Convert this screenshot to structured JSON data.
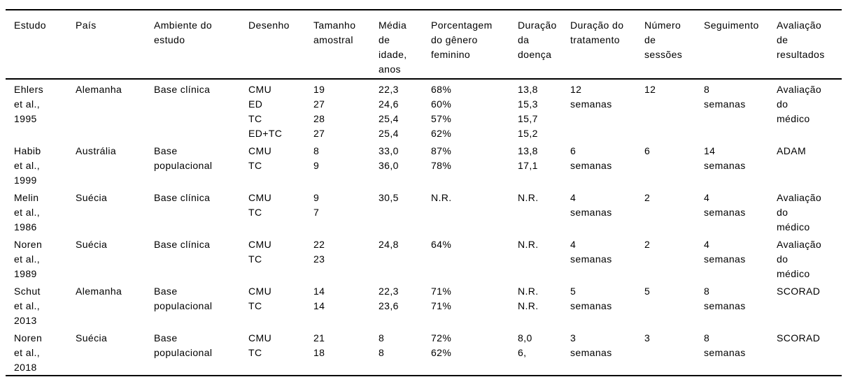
{
  "colors": {
    "text": "#000000",
    "background": "#ffffff",
    "border": "#000000"
  },
  "table": {
    "columns": [
      {
        "key": "estudo",
        "lines": [
          "Estudo"
        ]
      },
      {
        "key": "pais",
        "lines": [
          "País"
        ]
      },
      {
        "key": "ambiente-do-estudo",
        "lines": [
          "Ambiente do",
          "estudo"
        ]
      },
      {
        "key": "desenho",
        "lines": [
          "Desenho"
        ]
      },
      {
        "key": "tamanho-amostral",
        "lines": [
          "Tamanho",
          "amostral"
        ]
      },
      {
        "key": "media-de-idade",
        "lines": [
          "Média",
          "de",
          "idade,",
          "anos"
        ]
      },
      {
        "key": "porcentagem-genero-feminino",
        "lines": [
          "Porcentagem",
          "do gênero",
          "feminino"
        ]
      },
      {
        "key": "duracao-da-doenca",
        "lines": [
          "Duração",
          "da",
          "doença"
        ]
      },
      {
        "key": "duracao-do-tratamento",
        "lines": [
          "Duração do",
          "tratamento"
        ]
      },
      {
        "key": "numero-de-sessoes",
        "lines": [
          "Número",
          "de",
          "sessões"
        ]
      },
      {
        "key": "seguimento",
        "lines": [
          "Seguimento"
        ]
      },
      {
        "key": "avaliacao-de-resultados",
        "lines": [
          "Avaliação",
          "de",
          "resultados"
        ]
      }
    ],
    "rows": [
      {
        "id": "ehlers-1995",
        "cells": [
          [
            "Ehlers",
            "et al.,",
            "1995"
          ],
          [
            "Alemanha"
          ],
          [
            "Base clínica"
          ],
          [
            "CMU",
            "ED",
            "TC",
            "ED+TC"
          ],
          [
            "19",
            "27",
            "28",
            "27"
          ],
          [
            "22,3",
            "24,6",
            "25,4",
            "25,4"
          ],
          [
            "68%",
            "60%",
            "57%",
            "62%"
          ],
          [
            "13,8",
            "15,3",
            "15,7",
            "15,2"
          ],
          [
            "12",
            "semanas"
          ],
          [
            "12"
          ],
          [
            "8",
            "semanas"
          ],
          [
            "Avaliação",
            "do",
            "médico"
          ]
        ]
      },
      {
        "id": "habib-1999",
        "cells": [
          [
            "Habib",
            "et al.,",
            "1999"
          ],
          [
            "Austrália"
          ],
          [
            "Base",
            "populacional"
          ],
          [
            "CMU",
            "TC"
          ],
          [
            "8",
            "9"
          ],
          [
            "33,0",
            "36,0"
          ],
          [
            "87%",
            "78%"
          ],
          [
            "13,8",
            "17,1"
          ],
          [
            "6",
            "semanas"
          ],
          [
            "6"
          ],
          [
            "14",
            "semanas"
          ],
          [
            "ADAM"
          ]
        ]
      },
      {
        "id": "melin-1986",
        "cells": [
          [
            "Melin",
            "et al.,",
            "1986"
          ],
          [
            "Suécia"
          ],
          [
            "Base clínica"
          ],
          [
            "CMU",
            "TC"
          ],
          [
            "9",
            "7"
          ],
          [
            "30,5"
          ],
          [
            "N.R."
          ],
          [
            "N.R."
          ],
          [
            "4",
            "semanas"
          ],
          [
            "2"
          ],
          [
            "4",
            "semanas"
          ],
          [
            "Avaliação",
            "do",
            "médico"
          ]
        ]
      },
      {
        "id": "noren-1989",
        "cells": [
          [
            "Noren",
            "et al.,",
            "1989"
          ],
          [
            "Suécia"
          ],
          [
            "Base clínica"
          ],
          [
            "CMU",
            "TC"
          ],
          [
            "22",
            "23"
          ],
          [
            "24,8"
          ],
          [
            "64%"
          ],
          [
            "N.R."
          ],
          [
            "4",
            "semanas"
          ],
          [
            "2"
          ],
          [
            "4",
            "semanas"
          ],
          [
            "Avaliação",
            "do",
            "médico"
          ]
        ]
      },
      {
        "id": "schut-2013",
        "cells": [
          [
            "Schut",
            "et al.,",
            "2013"
          ],
          [
            "Alemanha"
          ],
          [
            "Base",
            "populacional"
          ],
          [
            "CMU",
            "TC"
          ],
          [
            "14",
            "14"
          ],
          [
            "22,3",
            "23,6"
          ],
          [
            "71%",
            "71%"
          ],
          [
            "N.R.",
            "N.R."
          ],
          [
            "5",
            "semanas"
          ],
          [
            "5"
          ],
          [
            "8",
            "semanas"
          ],
          [
            "SCORAD"
          ]
        ]
      },
      {
        "id": "noren-2018",
        "cells": [
          [
            "Noren",
            "et al.,",
            "2018"
          ],
          [
            "Suécia"
          ],
          [
            "Base",
            "populacional"
          ],
          [
            "CMU",
            "TC"
          ],
          [
            "21",
            "18"
          ],
          [
            "8",
            "8"
          ],
          [
            "72%",
            "62%"
          ],
          [
            "8,0",
            "6,"
          ],
          [
            "3",
            "semanas"
          ],
          [
            "3"
          ],
          [
            "8",
            "semanas"
          ],
          [
            "SCORAD"
          ]
        ]
      }
    ]
  }
}
